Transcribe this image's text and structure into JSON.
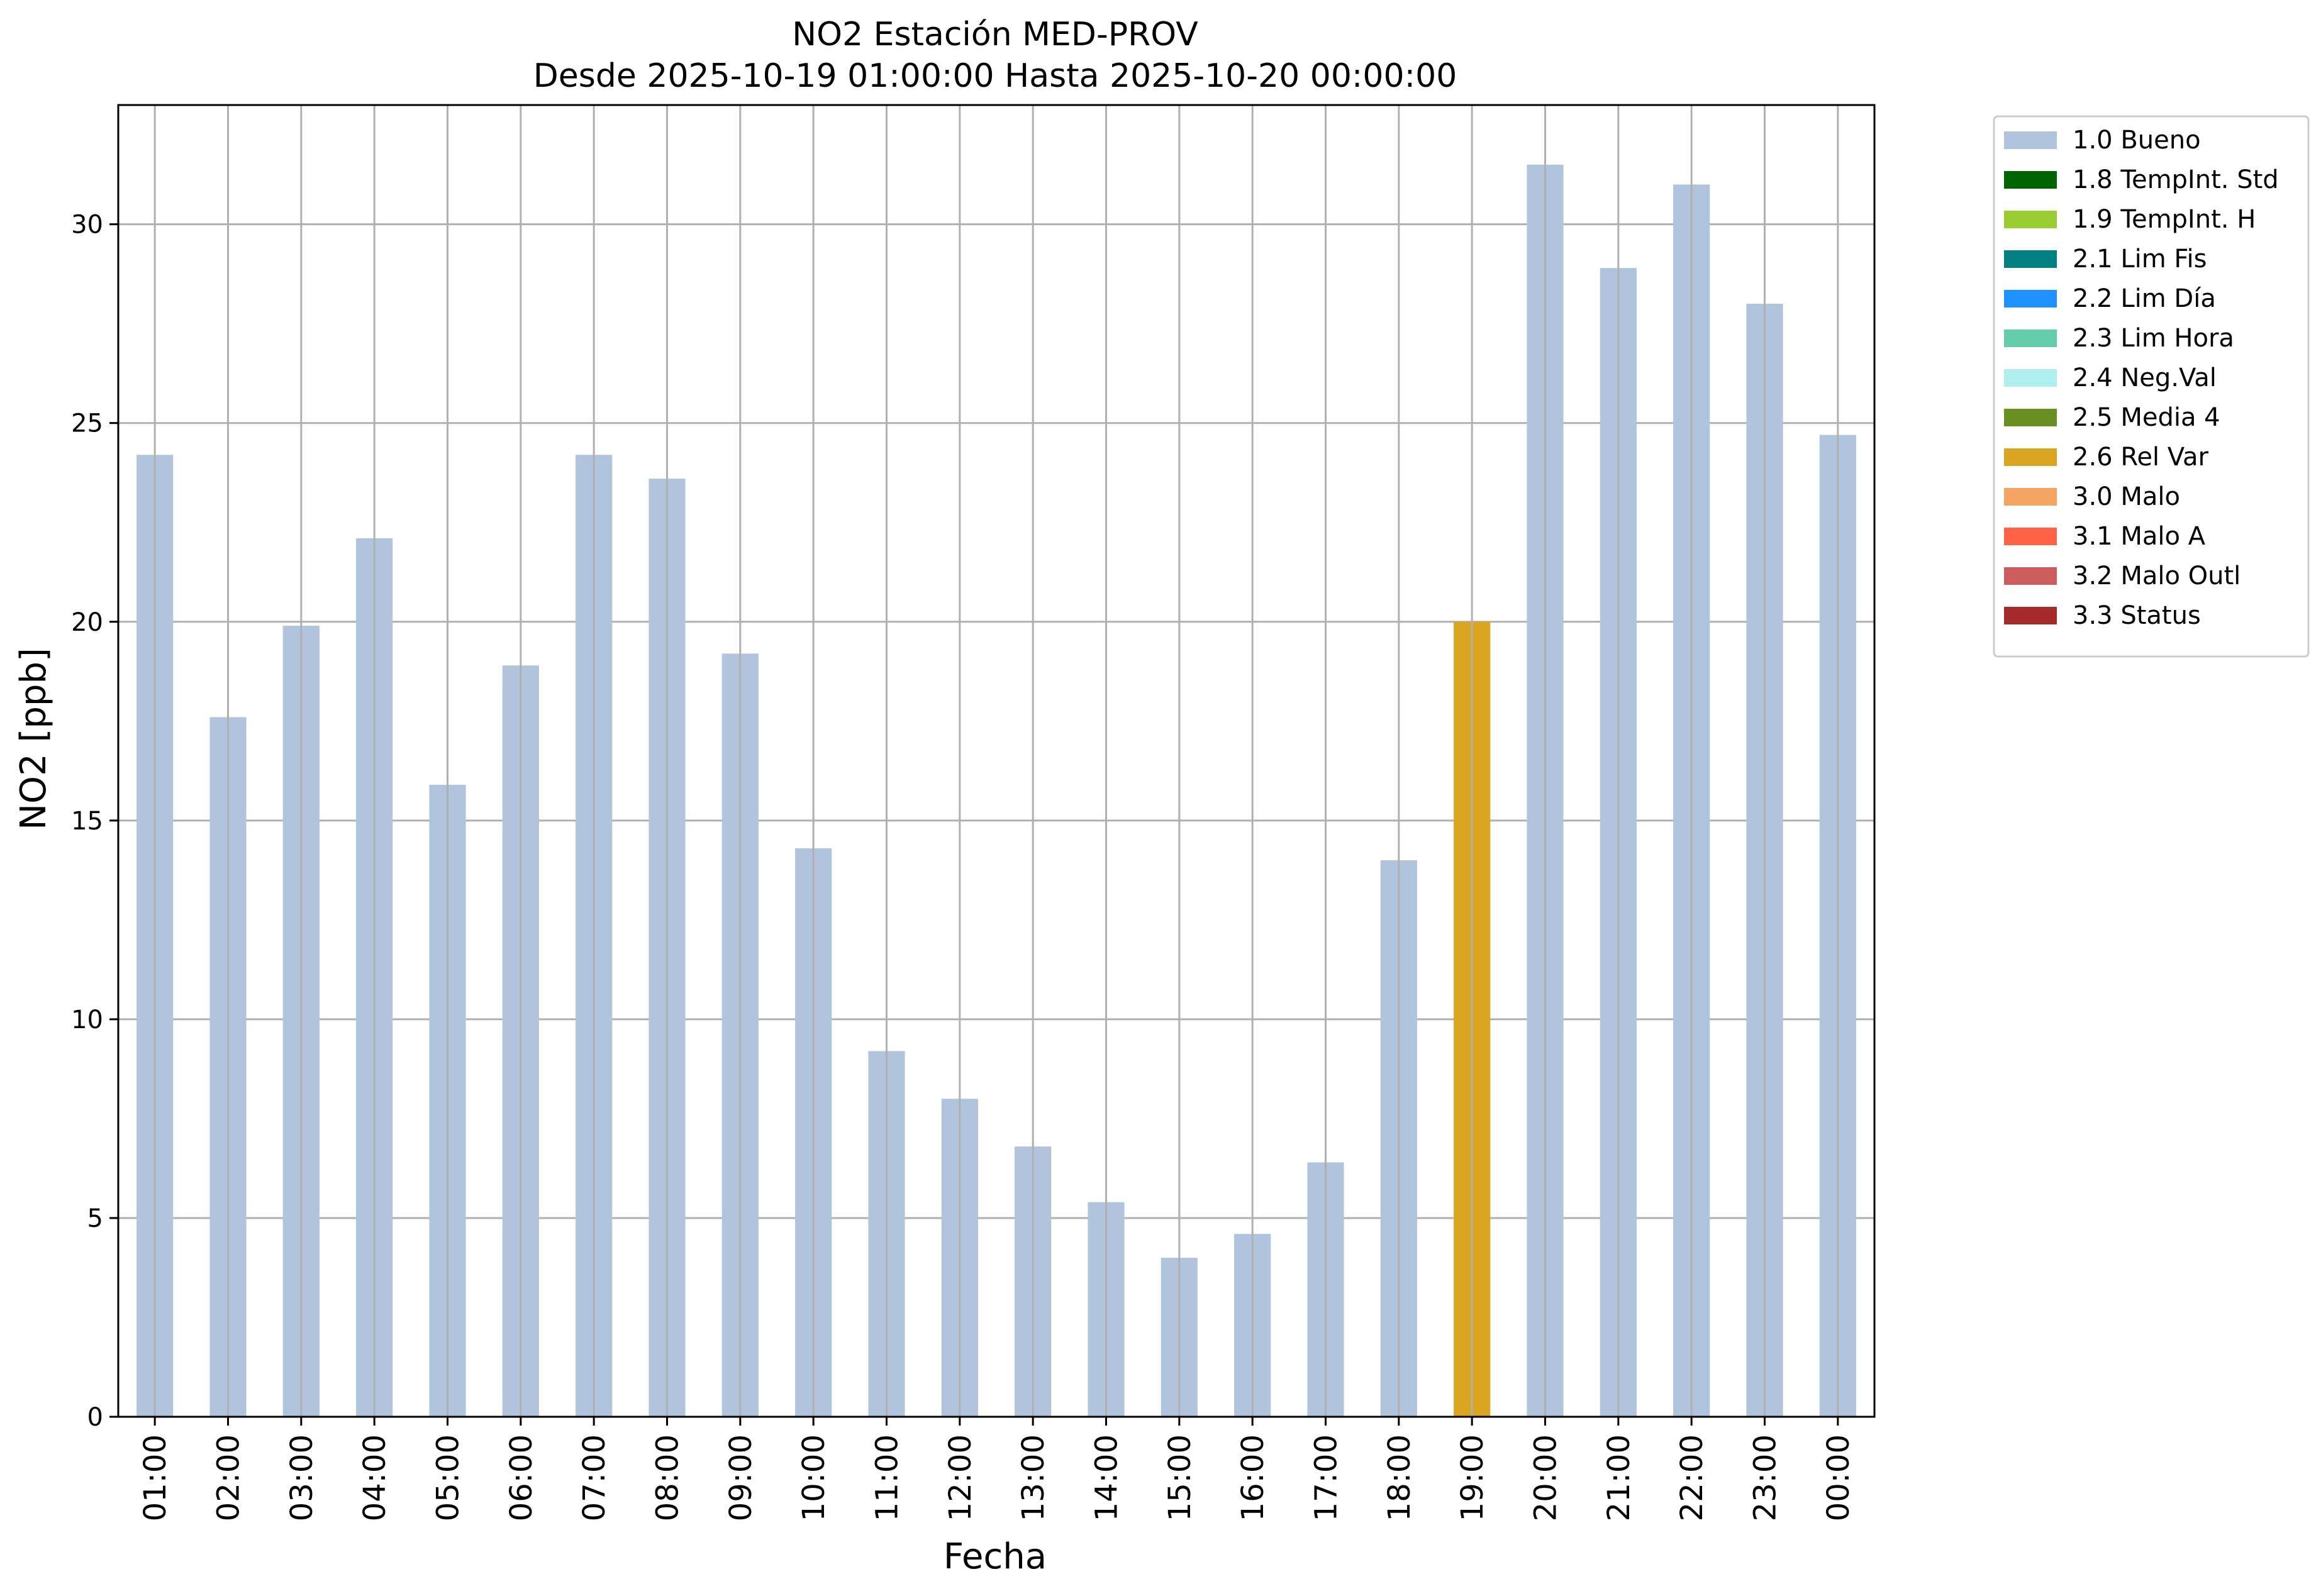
{
  "chart_data": {
    "type": "bar",
    "title": "NO2 Estación MED-PROV",
    "subtitle": "Desde 2025-10-19 01:00:00 Hasta 2025-10-20 00:00:00",
    "xlabel": "Fecha",
    "ylabel": "NO2 [ppb]",
    "ylim": [
      0,
      33
    ],
    "yticks": [
      0,
      5,
      10,
      15,
      20,
      25,
      30
    ],
    "grid": true,
    "legend_position": "outside-top-right",
    "categories": [
      "01:00",
      "02:00",
      "03:00",
      "04:00",
      "05:00",
      "06:00",
      "07:00",
      "08:00",
      "09:00",
      "10:00",
      "11:00",
      "12:00",
      "13:00",
      "14:00",
      "15:00",
      "16:00",
      "17:00",
      "18:00",
      "19:00",
      "20:00",
      "21:00",
      "22:00",
      "23:00",
      "00:00"
    ],
    "values": [
      24.2,
      17.6,
      19.9,
      22.1,
      15.9,
      18.9,
      24.2,
      23.6,
      19.2,
      14.3,
      9.2,
      8.0,
      6.8,
      5.4,
      4.0,
      4.6,
      6.4,
      14.0,
      20.0,
      31.5,
      28.9,
      31.0,
      28.0,
      24.7
    ],
    "flags": [
      "1.0 Bueno",
      "1.0 Bueno",
      "1.0 Bueno",
      "1.0 Bueno",
      "1.0 Bueno",
      "1.0 Bueno",
      "1.0 Bueno",
      "1.0 Bueno",
      "1.0 Bueno",
      "1.0 Bueno",
      "1.0 Bueno",
      "1.0 Bueno",
      "1.0 Bueno",
      "1.0 Bueno",
      "1.0 Bueno",
      "1.0 Bueno",
      "1.0 Bueno",
      "1.0 Bueno",
      "2.6 Rel Var",
      "1.0 Bueno",
      "1.0 Bueno",
      "1.0 Bueno",
      "1.0 Bueno",
      "1.0 Bueno"
    ],
    "legend": [
      {
        "label": "1.0 Bueno",
        "color": "#b0c4de"
      },
      {
        "label": "1.8 TempInt. Std",
        "color": "#006400"
      },
      {
        "label": "1.9 TempInt. H",
        "color": "#9acd32"
      },
      {
        "label": "2.1 Lim Fis",
        "color": "#008080"
      },
      {
        "label": "2.2 Lim Día",
        "color": "#1e90ff"
      },
      {
        "label": "2.3 Lim Hora",
        "color": "#66cdaa"
      },
      {
        "label": "2.4 Neg.Val",
        "color": "#afeeee"
      },
      {
        "label": "2.5 Media 4",
        "color": "#6b8e23"
      },
      {
        "label": "2.6 Rel Var",
        "color": "#daa520"
      },
      {
        "label": "3.0 Malo",
        "color": "#f4a460"
      },
      {
        "label": "3.1 Malo A",
        "color": "#ff6347"
      },
      {
        "label": "3.2 Malo Outl",
        "color": "#cd5c5c"
      },
      {
        "label": "3.3 Status",
        "color": "#a52a2a"
      }
    ]
  }
}
